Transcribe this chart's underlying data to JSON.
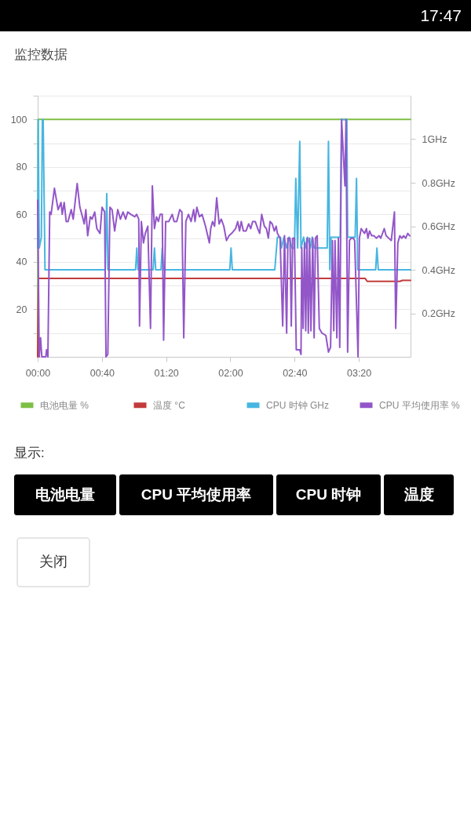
{
  "chart_data": {
    "type": "line",
    "title": "监控数据",
    "xlim": [
      0,
      3.87
    ],
    "xticks": [
      {
        "value": 0,
        "label": "00:00"
      },
      {
        "value": 0.6667,
        "label": "00:40"
      },
      {
        "value": 1.3333,
        "label": "01:20"
      },
      {
        "value": 2,
        "label": "02:00"
      },
      {
        "value": 2.6667,
        "label": "02:40"
      },
      {
        "value": 3.3333,
        "label": "03:20"
      }
    ],
    "ylim": [
      0,
      110
    ],
    "yticks": [
      {
        "value": 10,
        "label": null
      },
      20,
      {
        "value": 30,
        "label": null
      },
      40,
      {
        "value": 50,
        "label": null
      },
      60,
      {
        "value": 70,
        "label": null
      },
      80,
      {
        "value": 90,
        "label": null
      },
      100,
      {
        "value": 110,
        "label": null
      }
    ],
    "y2lim": [
      0,
      1.2
    ],
    "y2ticks": [
      {
        "value": 0.2,
        "label": "0.2GHz"
      },
      {
        "value": 0.4,
        "label": "0.4GHz"
      },
      {
        "value": 0.6,
        "label": "0.6GHz"
      },
      {
        "value": 0.8,
        "label": "0.8GHz"
      },
      {
        "value": 1,
        "label": "1GHz"
      }
    ],
    "grid": "y",
    "legend": "bottom",
    "series": [
      {
        "name": "电池电量 %",
        "color": "#7dbf45",
        "x": [
          0,
          0.005,
          3.87
        ],
        "values": [
          0,
          100,
          100
        ]
      },
      {
        "name": "温度 °C",
        "color": "#c23b3b",
        "x": [
          0,
          0.008,
          3.399,
          3.42,
          3.76,
          3.785,
          3.87
        ],
        "values": [
          0,
          33,
          33,
          31.8,
          31.8,
          32.2,
          32.2
        ]
      },
      {
        "name": "CPU 时钟 GHz",
        "color": "#47b6e0",
        "axis": "y2",
        "x": [
          0,
          0.005,
          0.016,
          0.038,
          0.049,
          0.057,
          0.076,
          0.701,
          0.717,
          0.729,
          1.016,
          1.029,
          1.041,
          1.198,
          1.212,
          1.225,
          1.28,
          1.293,
          1.306,
          1.994,
          2.007,
          2.02,
          2.461,
          2.488,
          2.52,
          2.53,
          2.556,
          2.584,
          2.61,
          2.638,
          2.665,
          2.679,
          2.698,
          2.72,
          2.733,
          2.76,
          2.78,
          2.8,
          2.83,
          2.85,
          2.87,
          3.005,
          3.018,
          3.032,
          3.045,
          3.14,
          3.154,
          3.209,
          3.217,
          3.295,
          3.309,
          3.322,
          3.508,
          3.521,
          3.535,
          3.87
        ],
        "values": [
          0.5,
          1.09,
          0.5,
          0.55,
          1.09,
          1.09,
          0.4,
          0.4,
          0.75,
          0.4,
          0.4,
          0.5,
          0.4,
          0.4,
          0.5,
          0.4,
          0.4,
          0.5,
          0.4,
          0.4,
          0.5,
          0.4,
          0.4,
          0.55,
          0.55,
          0.5,
          0.55,
          0.5,
          0.55,
          0.5,
          0.5,
          0.82,
          0.5,
          0.99,
          0.5,
          0.55,
          0.5,
          0.55,
          0.5,
          0.55,
          0.5,
          0.5,
          0.99,
          0.4,
          0.55,
          0.55,
          1.09,
          1.09,
          0.55,
          0.55,
          0.82,
          0.4,
          0.4,
          0.5,
          0.4,
          0.4
        ]
      },
      {
        "name": "CPU 平均使用率 %",
        "color": "#9356c8",
        "x": [
          0,
          0.016,
          0.03,
          0.043,
          0.084,
          0.092,
          0.106,
          0.125,
          0.139,
          0.174,
          0.212,
          0.242,
          0.255,
          0.275,
          0.296,
          0.315,
          0.348,
          0.369,
          0.41,
          0.438,
          0.465,
          0.483,
          0.5,
          0.519,
          0.546,
          0.565,
          0.592,
          0.614,
          0.647,
          0.668,
          0.695,
          0.709,
          0.728,
          0.75,
          0.772,
          0.799,
          0.831,
          0.859,
          0.886,
          0.913,
          0.935,
          0.967,
          1.008,
          1.027,
          1.049,
          1.057,
          1.076,
          1.098,
          1.117,
          1.143,
          1.171,
          1.19,
          1.212,
          1.233,
          1.253,
          1.271,
          1.293,
          1.307,
          1.328,
          1.361,
          1.396,
          1.416,
          1.443,
          1.475,
          1.497,
          1.516,
          1.538,
          1.565,
          1.592,
          1.619,
          1.633,
          1.652,
          1.679,
          1.706,
          1.742,
          1.782,
          1.796,
          1.815,
          1.836,
          1.858,
          1.883,
          1.905,
          1.932,
          1.959,
          1.986,
          2.013,
          2.054,
          2.076,
          2.095,
          2.113,
          2.135,
          2.162,
          2.19,
          2.211,
          2.231,
          2.258,
          2.284,
          2.304,
          2.325,
          2.353,
          2.374,
          2.394,
          2.412,
          2.434,
          2.456,
          2.475,
          2.488,
          2.516,
          2.543,
          2.562,
          2.584,
          2.597,
          2.619,
          2.632,
          2.646,
          2.665,
          2.684,
          2.72,
          2.733,
          2.741,
          2.755,
          2.769,
          2.782,
          2.795,
          2.809,
          2.822,
          2.836,
          2.855,
          2.869,
          2.883,
          2.901,
          2.923,
          2.95,
          2.991,
          3.018,
          3.04,
          3.059,
          3.073,
          3.086,
          3.105,
          3.121,
          3.135,
          3.154,
          3.173,
          3.189,
          3.2,
          3.217,
          3.236,
          3.255,
          3.276,
          3.29,
          3.325,
          3.339,
          3.358,
          3.374,
          3.393,
          3.412,
          3.428,
          3.445,
          3.466,
          3.488,
          3.515,
          3.543,
          3.561,
          3.597,
          3.616,
          3.643,
          3.67,
          3.703,
          3.716,
          3.738,
          3.759,
          3.779,
          3.798,
          3.82,
          3.841,
          3.861
        ],
        "values": [
          66,
          0,
          8,
          0,
          0,
          3,
          0,
          61,
          60,
          71,
          62,
          65,
          60,
          65,
          57,
          57,
          62,
          58,
          73,
          63,
          59,
          56,
          62,
          51,
          59,
          58,
          61,
          54,
          52,
          63,
          61,
          0,
          1,
          63,
          62,
          53,
          62,
          58,
          61,
          58,
          61,
          60,
          59,
          60,
          58,
          13,
          57,
          48,
          52,
          55,
          12,
          72,
          54,
          59,
          57,
          60,
          60,
          7,
          57,
          57,
          60,
          57,
          57,
          62,
          61,
          8,
          57,
          60,
          57,
          62,
          57,
          63,
          59,
          60,
          55,
          48,
          54,
          57,
          55,
          67,
          56,
          58,
          55,
          49,
          51,
          52,
          54,
          57,
          53,
          57,
          53,
          53,
          56,
          54,
          57,
          57,
          54,
          52,
          60,
          55,
          54,
          50,
          57,
          56,
          53,
          55,
          52,
          50,
          13,
          51,
          10,
          50,
          50,
          13,
          50,
          50,
          3,
          3,
          1,
          46,
          12,
          48,
          11,
          50,
          10,
          50,
          11,
          50,
          8,
          50,
          51,
          12,
          10,
          9,
          2,
          4,
          49,
          11,
          49,
          8,
          50,
          4,
          100,
          85,
          72,
          100,
          2,
          49,
          50,
          50,
          49,
          0,
          50,
          54,
          53,
          52,
          54,
          50,
          53,
          51,
          51,
          50,
          51,
          50,
          54,
          51,
          50,
          49,
          61,
          12,
          48,
          51,
          50,
          51,
          50,
          52,
          51
        ]
      }
    ],
    "annotations": [
      "17:47",
      "显示:",
      "电池电量",
      "CPU 平均使用率",
      "CPU 时钟",
      "温度",
      "关闭"
    ]
  }
}
